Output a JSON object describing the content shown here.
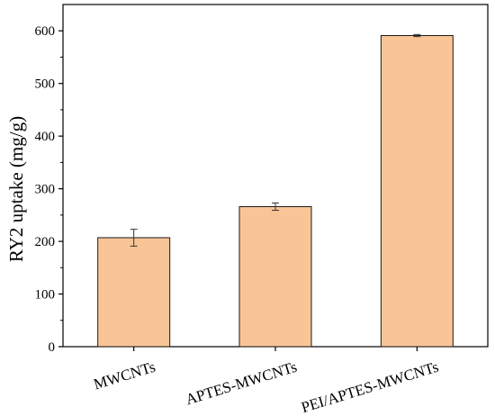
{
  "chart_data": {
    "type": "bar",
    "title": "",
    "xlabel": "",
    "ylabel": "RY2 uptake (mg/g)",
    "categories": [
      "MWCNTs",
      "APTES-MWCNTs",
      "PEI/APTES-MWCNTs"
    ],
    "values": [
      207,
      266,
      591
    ],
    "errors": [
      16,
      7,
      2
    ],
    "ylim": [
      0,
      650
    ],
    "yticks": [
      0,
      100,
      200,
      300,
      400,
      500,
      600
    ],
    "grid": false,
    "legend": "none",
    "colors": {
      "bar_fill": "#f9c596",
      "bar_edge": "#1a1a1a",
      "axis": "#000000"
    }
  }
}
